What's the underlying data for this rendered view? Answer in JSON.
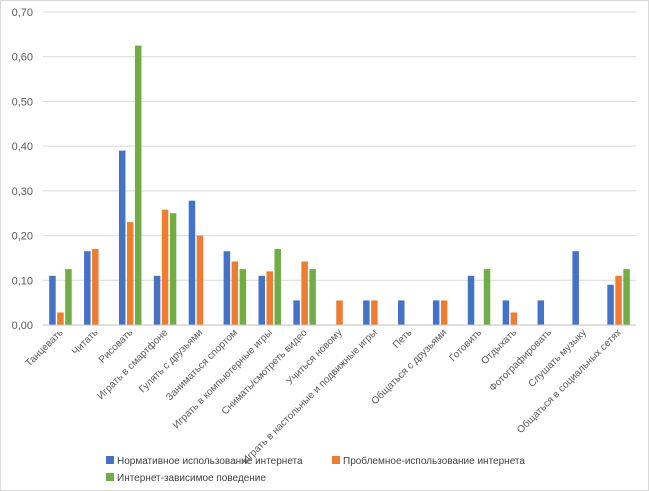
{
  "chart_data": {
    "type": "bar",
    "title": "",
    "xlabel": "",
    "ylabel": "",
    "ylim": [
      0,
      0.7
    ],
    "yticks": [
      "0,00",
      "0,10",
      "0,20",
      "0,30",
      "0,40",
      "0,50",
      "0,60",
      "0,70"
    ],
    "grid": true,
    "legend_position": "bottom",
    "categories": [
      "Танцевать",
      "Читать",
      "Рисовать",
      "Играть в смартфоне",
      "Гулять с друзьями",
      "Заниматься спортом",
      "Играть в компьютерные игры",
      "Снимать/смотреть видео",
      "Учиться новому",
      "Играть в настольные и подвижные игры",
      "Петь",
      "Общаться с друзьями",
      "Готовить",
      "Отдыхать",
      "Фотографировать",
      "Слушать музыку",
      "Общаться в социальных сетях"
    ],
    "series": [
      {
        "name": "Нормативное использование интернета",
        "color": "#4472C4",
        "values": [
          0.11,
          0.165,
          0.39,
          0.11,
          0.278,
          0.165,
          0.11,
          0.055,
          0,
          0.055,
          0.055,
          0.055,
          0.11,
          0.055,
          0.055,
          0.165,
          0.09
        ]
      },
      {
        "name": "Проблемное-использование интернета",
        "color": "#ED7D31",
        "values": [
          0.028,
          0.17,
          0.23,
          0.258,
          0.2,
          0.142,
          0.12,
          0.142,
          0.055,
          0.055,
          0,
          0.055,
          0,
          0.028,
          0,
          0,
          0.11
        ]
      },
      {
        "name": "Интернет-зависимое поведение",
        "color": "#70AD47",
        "values": [
          0.125,
          0,
          0.625,
          0.25,
          0,
          0.125,
          0.17,
          0.125,
          0,
          0,
          0,
          0,
          0.125,
          0,
          0,
          0,
          0.125
        ]
      }
    ]
  }
}
